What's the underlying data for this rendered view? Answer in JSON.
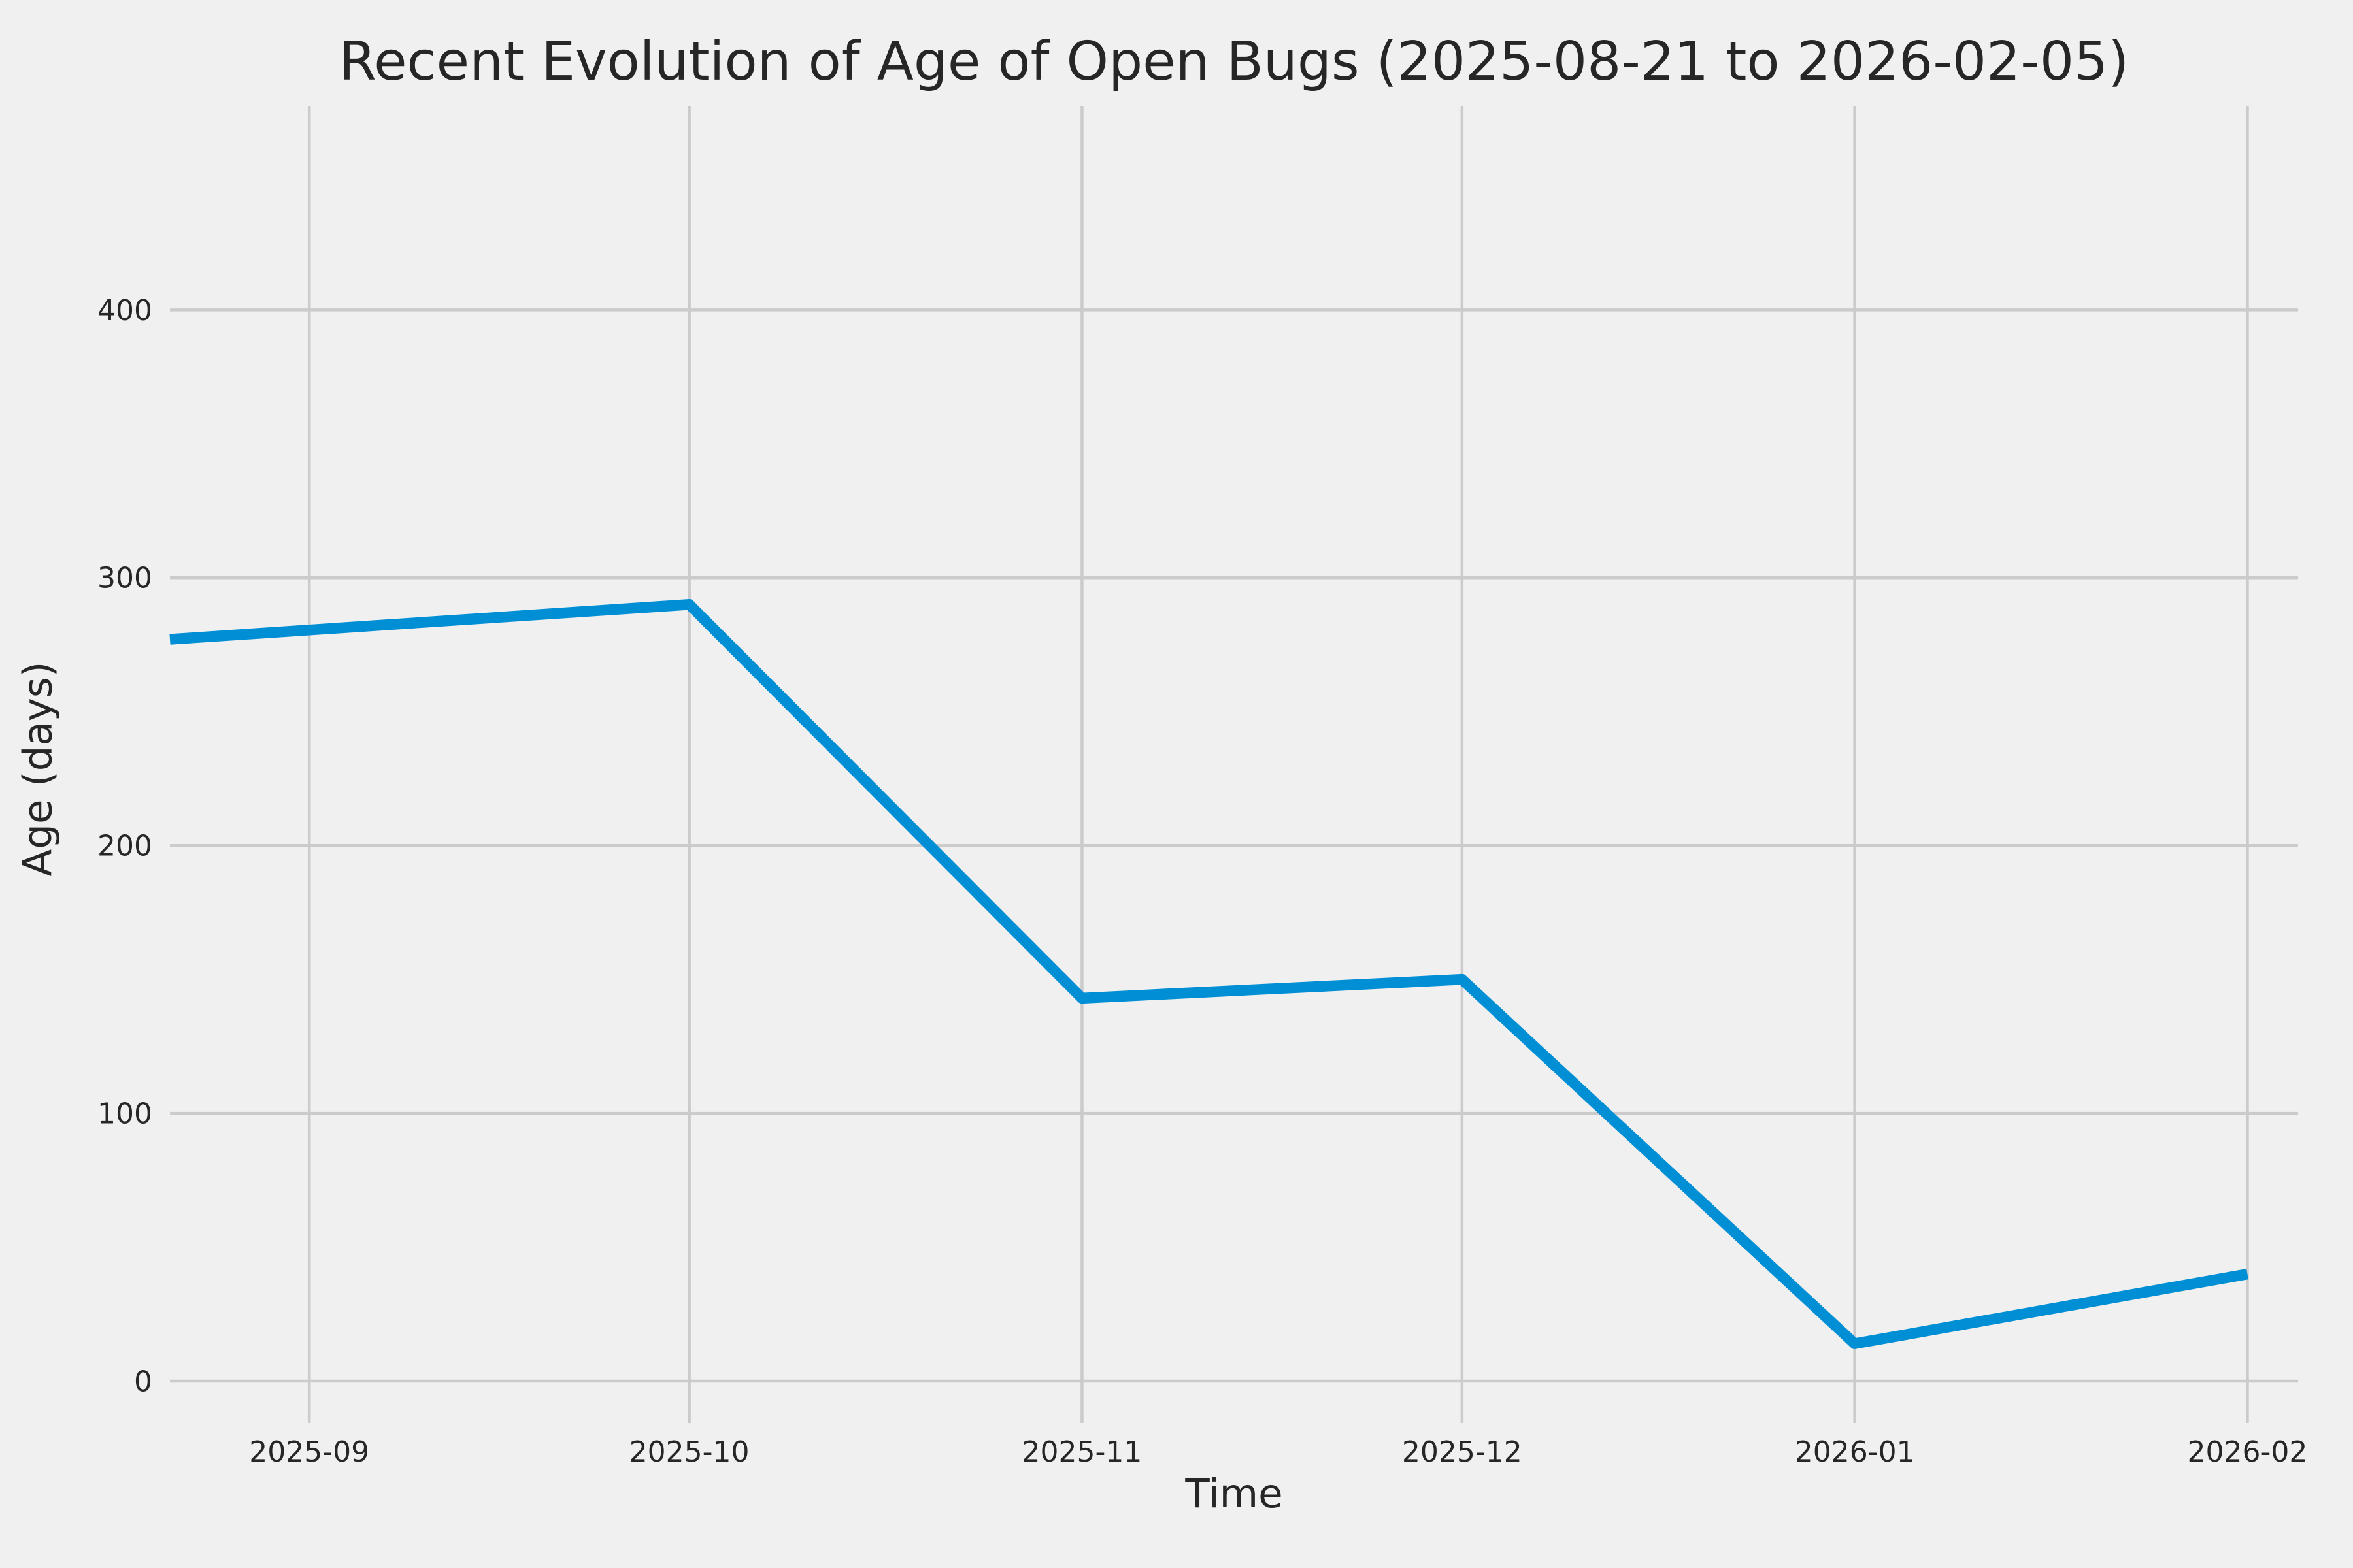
{
  "figure": {
    "background": "#f0f0f0",
    "grid_color": "#cbcbcb",
    "text_color": "#262626",
    "grid_line_width": 4.5,
    "series_line_width": 16.5
  },
  "chart_data": {
    "type": "line",
    "title": "Recent Evolution of Age of Open Bugs (2025-08-21 to 2026-02-05)",
    "xlabel": "Time",
    "ylabel": "Age (days)",
    "date_range": [
      "2025-08-21",
      "2026-02-05"
    ],
    "xlim_days": [
      0,
      168
    ],
    "ylim": [
      -15.6,
      476.2
    ],
    "grid": true,
    "legend_position": "none",
    "x_ticks": [
      {
        "label": "2025-09",
        "day": 11
      },
      {
        "label": "2025-10",
        "day": 41
      },
      {
        "label": "2025-11",
        "day": 72
      },
      {
        "label": "2025-12",
        "day": 102
      },
      {
        "label": "2026-01",
        "day": 133
      },
      {
        "label": "2026-02",
        "day": 164
      }
    ],
    "y_ticks": [
      {
        "label": "0",
        "value": 0
      },
      {
        "label": "100",
        "value": 100
      },
      {
        "label": "200",
        "value": 200
      },
      {
        "label": "300",
        "value": 300
      },
      {
        "label": "400",
        "value": 400
      }
    ],
    "series": [
      {
        "color": "#008fd5",
        "points": [
          {
            "date": "2025-08-21",
            "day": 0,
            "value": 277
          },
          {
            "date": "2025-10-01",
            "day": 41,
            "value": 290
          },
          {
            "date": "2025-11-01",
            "day": 72,
            "value": 143
          },
          {
            "date": "2025-12-01",
            "day": 102,
            "value": 150
          },
          {
            "date": "2026-01-01",
            "day": 133,
            "value": 14
          },
          {
            "date": "2026-02-01",
            "day": 164,
            "value": 40
          }
        ]
      }
    ]
  }
}
